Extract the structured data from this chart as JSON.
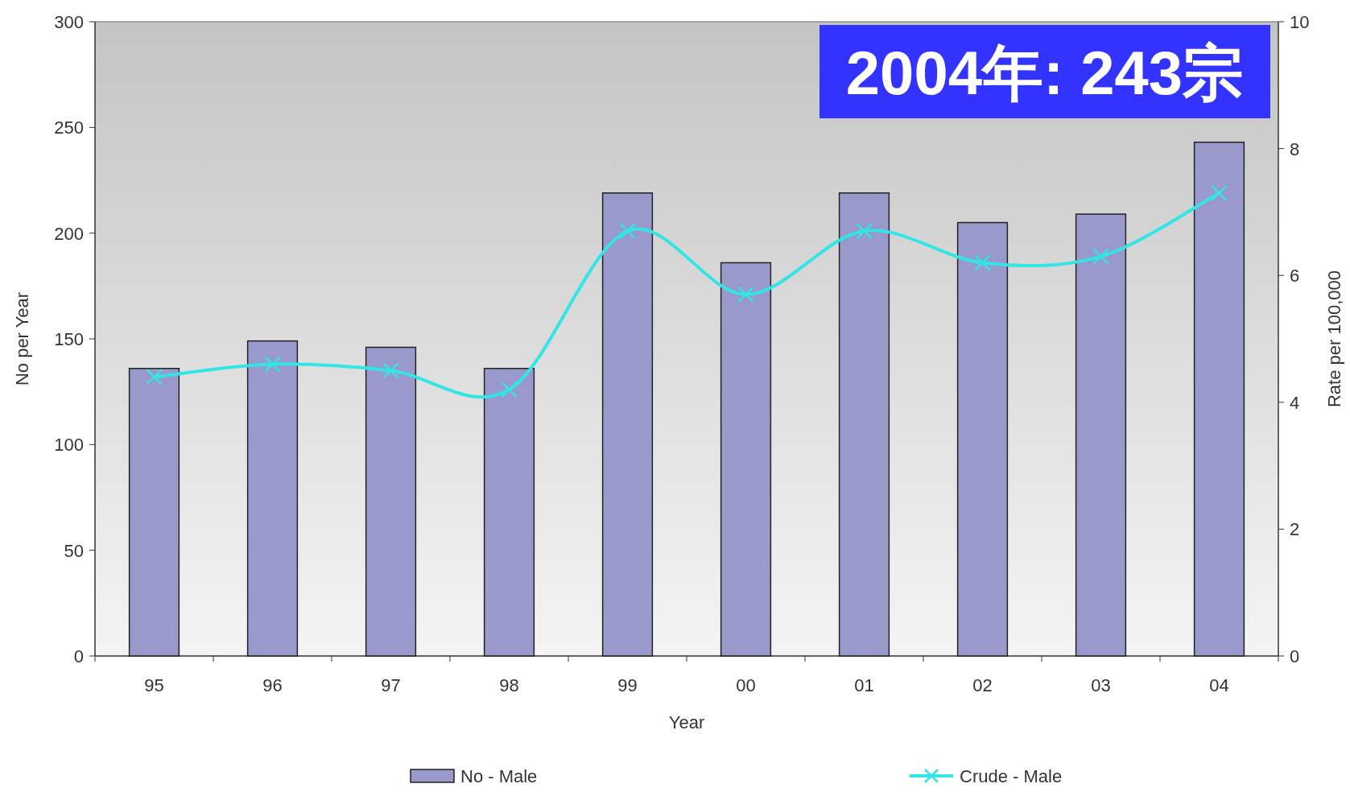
{
  "chart_data": {
    "type": "bar",
    "categories": [
      "95",
      "96",
      "97",
      "98",
      "99",
      "00",
      "01",
      "02",
      "03",
      "04"
    ],
    "series": [
      {
        "name": "No - Male",
        "color": "#9999cc",
        "values": [
          136,
          149,
          146,
          136,
          219,
          186,
          219,
          205,
          209,
          243
        ]
      },
      {
        "name": "Crude - Male",
        "type": "line",
        "axis": "y2",
        "color": "#33e5e5",
        "marker": "cross",
        "values": [
          4.4,
          4.6,
          4.5,
          4.2,
          6.7,
          5.7,
          6.7,
          6.2,
          6.3,
          7.3
        ]
      }
    ],
    "ylim": [
      0,
      300
    ],
    "yticks": [
      0,
      50,
      100,
      150,
      200,
      250,
      300
    ],
    "y2lim": [
      0,
      10
    ],
    "y2ticks": [
      0,
      2,
      4,
      6,
      8,
      10
    ],
    "xlabel": "Year",
    "ylabel": "No per Year",
    "y2label": "Rate per 100,000",
    "annotations": [
      "2004年: 243宗"
    ],
    "legend": "bottom"
  }
}
